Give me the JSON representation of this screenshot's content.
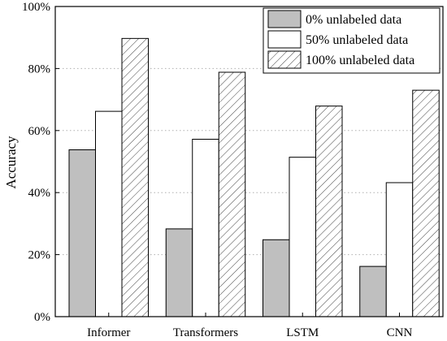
{
  "chart_data": {
    "type": "bar",
    "title": "",
    "xlabel": "",
    "ylabel": "Accuracy",
    "ylim": [
      0,
      100
    ],
    "y_unit": "%",
    "yticks": [
      0,
      20,
      40,
      60,
      80,
      100
    ],
    "ytick_labels": [
      "0%",
      "20%",
      "40%",
      "60%",
      "80%",
      "100%"
    ],
    "grid": "horizontal-dotted",
    "legend_position": "top-right",
    "categories": [
      "Informer",
      "Transformers",
      "LSTM",
      "CNN"
    ],
    "series": [
      {
        "name": "0% unlabeled data",
        "values": [
          53.8,
          28.3,
          24.8,
          16.2
        ],
        "fill": "#bfbfbf",
        "pattern": "solid"
      },
      {
        "name": "50% unlabeled data",
        "values": [
          66.2,
          57.2,
          51.4,
          43.2
        ],
        "fill": "#ffffff",
        "pattern": "solid"
      },
      {
        "name": "100% unlabeled data",
        "values": [
          89.7,
          78.8,
          67.9,
          73.0
        ],
        "fill": "#ffffff",
        "pattern": "hatch"
      }
    ]
  }
}
